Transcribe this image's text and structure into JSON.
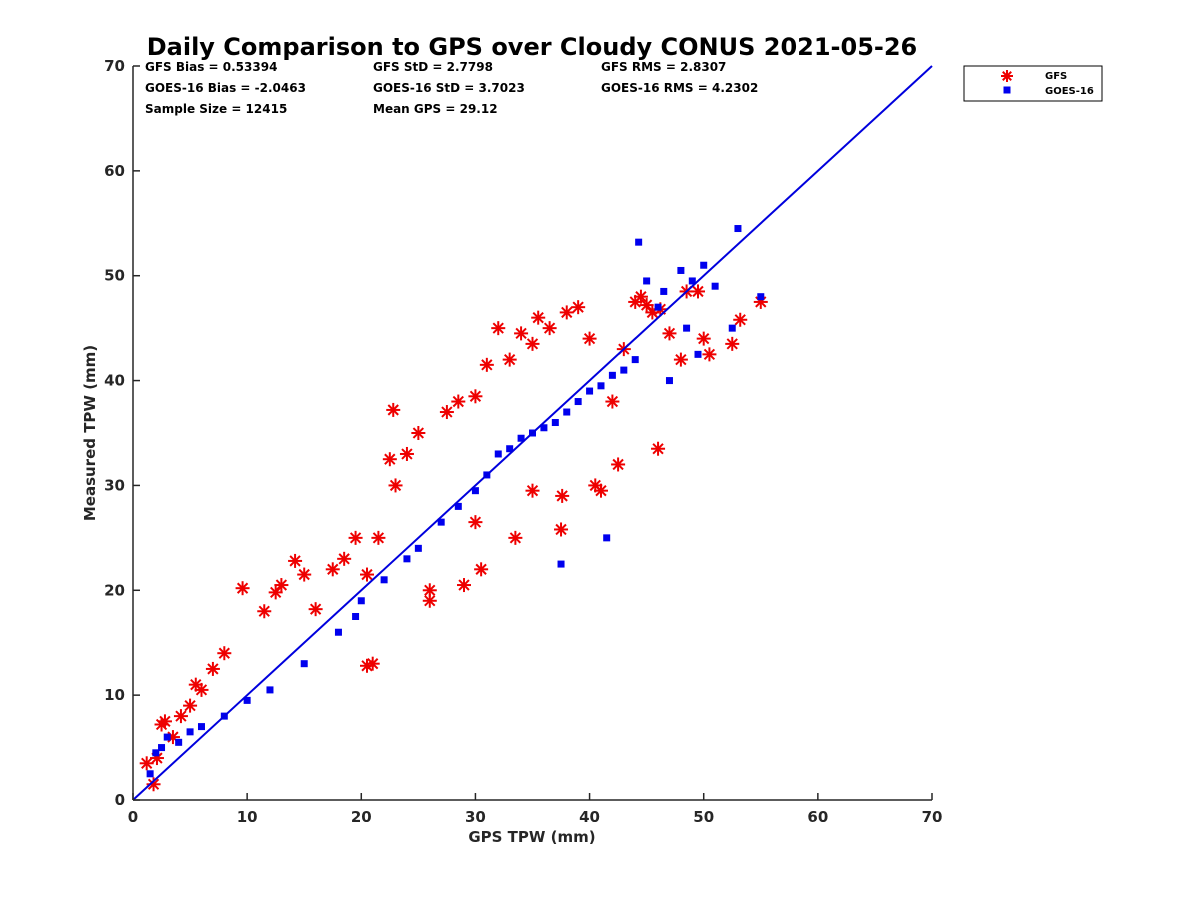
{
  "chart_data": {
    "type": "scatter",
    "title": "Daily Comparison to GPS over Cloudy CONUS 2021-05-26",
    "xlabel": "GPS TPW (mm)",
    "ylabel": "Measured TPW (mm)",
    "xlim": [
      0,
      70
    ],
    "ylim": [
      0,
      70
    ],
    "xticks": [
      "0",
      "10",
      "20",
      "30",
      "40",
      "50",
      "60",
      "70"
    ],
    "yticks": [
      "0",
      "10",
      "20",
      "30",
      "40",
      "50",
      "60",
      "70"
    ],
    "grid": false,
    "legend_position": "top-right (outside plot)",
    "reference_line": {
      "x": [
        0,
        70
      ],
      "y": [
        0,
        70
      ],
      "color": "#0000dd"
    },
    "stats": [
      [
        "GFS Bias = 0.53394",
        "GFS StD = 2.7798",
        "GFS RMS = 2.8307"
      ],
      [
        "GOES-16 Bias = -2.0463",
        "GOES-16 StD = 3.7023",
        "GOES-16 RMS = 4.2302"
      ],
      [
        "Sample Size = 12415",
        "Mean GPS = 29.12",
        ""
      ]
    ],
    "series": [
      {
        "name": "GFS",
        "marker": "asterisk",
        "color": "#ee0000",
        "x": [
          1.2,
          1.8,
          2.1,
          2.5,
          2.8,
          3.5,
          4.2,
          5.0,
          5.5,
          6.0,
          7.0,
          8.0,
          9.6,
          11.5,
          12.5,
          13.0,
          14.2,
          15.0,
          16.0,
          17.5,
          18.5,
          19.5,
          20.5,
          21.0,
          21.5,
          22.5,
          22.8,
          23.0,
          24.0,
          25.0,
          26.0,
          27.5,
          28.5,
          29.0,
          30.0,
          31.0,
          32.0,
          33.0,
          34.0,
          35.0,
          35.5,
          36.5,
          37.5,
          38.0,
          39.0,
          40.0,
          41.0,
          42.0,
          43.0,
          44.0,
          44.5,
          45.0,
          45.5,
          46.0,
          46.2,
          47.0,
          48.0,
          48.5,
          49.5,
          50.0,
          50.5,
          52.5,
          53.2,
          55.0,
          20.5,
          26.0,
          30.5,
          33.5,
          37.6,
          40.5,
          42.5,
          30.0,
          35.0
        ],
        "y": [
          3.5,
          1.5,
          4.0,
          7.2,
          7.5,
          6.0,
          8.0,
          9.0,
          11.0,
          10.5,
          12.5,
          14.0,
          20.2,
          18.0,
          19.8,
          20.5,
          22.8,
          21.5,
          18.2,
          22.0,
          23.0,
          25.0,
          12.8,
          13.0,
          25.0,
          32.5,
          37.2,
          30.0,
          33.0,
          35.0,
          20.0,
          37.0,
          38.0,
          20.5,
          38.5,
          41.5,
          45.0,
          42.0,
          44.5,
          43.5,
          46.0,
          45.0,
          25.8,
          46.5,
          47.0,
          44.0,
          29.5,
          38.0,
          43.0,
          47.5,
          48.0,
          47.2,
          46.5,
          33.5,
          46.8,
          44.5,
          42.0,
          48.5,
          48.5,
          44.0,
          42.5,
          43.5,
          45.8,
          47.5,
          21.5,
          19.0,
          22.0,
          25.0,
          29.0,
          30.0,
          32.0,
          26.5,
          29.5
        ]
      },
      {
        "name": "GOES-16",
        "marker": "square",
        "color": "#0000ee",
        "x": [
          1.5,
          2.0,
          2.5,
          3.0,
          4.0,
          5.0,
          6.0,
          8.0,
          10.0,
          12.0,
          15.0,
          18.0,
          20.0,
          22.0,
          24.0,
          25.0,
          27.0,
          28.5,
          30.0,
          31.0,
          32.0,
          33.0,
          34.0,
          35.0,
          36.0,
          37.0,
          38.0,
          39.0,
          40.0,
          41.0,
          42.0,
          43.0,
          44.0,
          44.3,
          45.0,
          46.0,
          46.5,
          47.0,
          48.0,
          48.5,
          49.0,
          49.5,
          50.0,
          51.0,
          52.5,
          53.0,
          55.0,
          37.5,
          41.5,
          19.5
        ],
        "y": [
          2.5,
          4.5,
          5.0,
          6.0,
          5.5,
          6.5,
          7.0,
          8.0,
          9.5,
          10.5,
          13.0,
          16.0,
          19.0,
          21.0,
          23.0,
          24.0,
          26.5,
          28.0,
          29.5,
          31.0,
          33.0,
          33.5,
          34.5,
          35.0,
          35.5,
          36.0,
          37.0,
          38.0,
          39.0,
          39.5,
          40.5,
          41.0,
          42.0,
          53.2,
          49.5,
          47.0,
          48.5,
          40.0,
          50.5,
          45.0,
          49.5,
          42.5,
          51.0,
          49.0,
          45.0,
          54.5,
          48.0,
          22.5,
          25.0,
          17.5
        ]
      }
    ]
  }
}
